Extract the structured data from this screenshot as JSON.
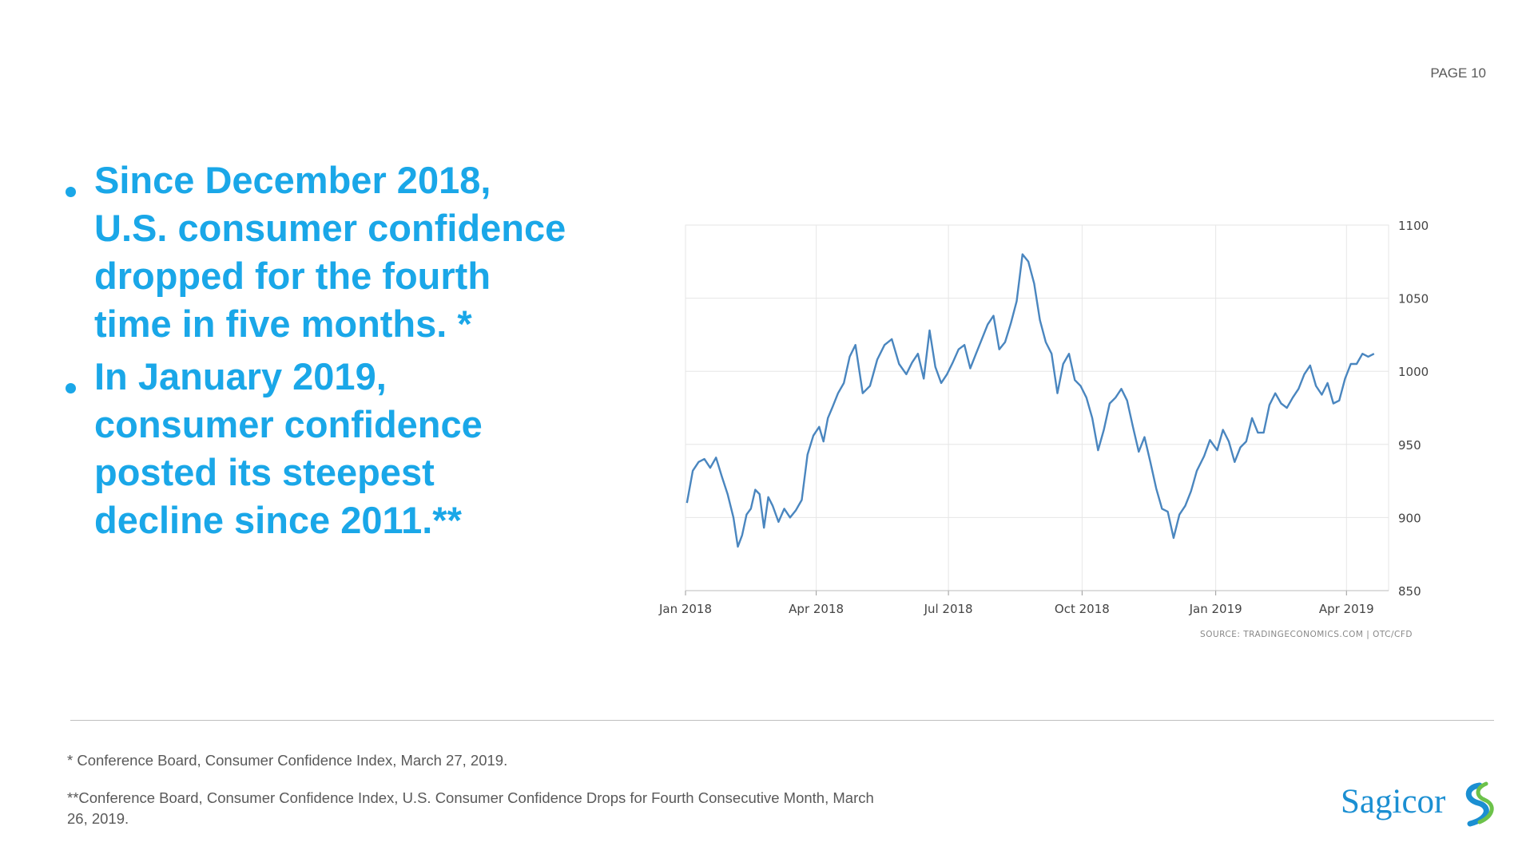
{
  "page": {
    "label": "PAGE 10"
  },
  "bullets": [
    {
      "text": "Since December 2018, U.S. consumer confidence dropped for the fourth time in five months. *"
    },
    {
      "text": "In January 2019, consumer confidence posted its steepest decline since 2011.**"
    }
  ],
  "footnotes": [
    {
      "text": "* Conference Board, Consumer Confidence Index, March 27, 2019."
    },
    {
      "text": "**Conference Board, Consumer Confidence Index, U.S. Consumer Confidence Drops for Fourth Consecutive Month, March 26, 2019."
    }
  ],
  "logo": {
    "text": "Sagicor"
  },
  "colors": {
    "accent": "#1aa7e8",
    "line": "#4a86bf",
    "grid": "#e6e6e6",
    "logo": "#1b8fd2",
    "logo_swoosh": "#6cc24a"
  },
  "chart_data": {
    "type": "line",
    "title": "",
    "source": "SOURCE: TRADINGECONOMICS.COM | OTC/CFD",
    "x_ticks": [
      "Jan 2018",
      "Apr 2018",
      "Jul 2018",
      "Oct 2018",
      "Jan 2019",
      "Apr 2019"
    ],
    "y_ticks": [
      850,
      900,
      950,
      1000,
      1050,
      1100
    ],
    "ylim": [
      850,
      1100
    ],
    "xlim": [
      "2018-01-01",
      "2019-04-30"
    ],
    "grid": true,
    "y_axis_side": "right",
    "series": [
      {
        "x": [
          "2018-01-02",
          "2018-01-06",
          "2018-01-10",
          "2018-01-14",
          "2018-01-18",
          "2018-01-22",
          "2018-01-26",
          "2018-01-30",
          "2018-02-03",
          "2018-02-06",
          "2018-02-09",
          "2018-02-12",
          "2018-02-15",
          "2018-02-18",
          "2018-02-21",
          "2018-02-24",
          "2018-02-27",
          "2018-03-02",
          "2018-03-06",
          "2018-03-10",
          "2018-03-14",
          "2018-03-18",
          "2018-03-22",
          "2018-03-26",
          "2018-03-30",
          "2018-04-03",
          "2018-04-06",
          "2018-04-09",
          "2018-04-12",
          "2018-04-16",
          "2018-04-20",
          "2018-04-24",
          "2018-04-28",
          "2018-05-03",
          "2018-05-08",
          "2018-05-13",
          "2018-05-18",
          "2018-05-23",
          "2018-05-28",
          "2018-06-02",
          "2018-06-06",
          "2018-06-10",
          "2018-06-14",
          "2018-06-18",
          "2018-06-22",
          "2018-06-26",
          "2018-06-30",
          "2018-07-04",
          "2018-07-08",
          "2018-07-12",
          "2018-07-16",
          "2018-07-20",
          "2018-07-24",
          "2018-07-28",
          "2018-08-01",
          "2018-08-05",
          "2018-08-09",
          "2018-08-13",
          "2018-08-17",
          "2018-08-21",
          "2018-08-25",
          "2018-08-29",
          "2018-09-02",
          "2018-09-06",
          "2018-09-10",
          "2018-09-14",
          "2018-09-18",
          "2018-09-22",
          "2018-09-26",
          "2018-09-30",
          "2018-10-04",
          "2018-10-08",
          "2018-10-12",
          "2018-10-16",
          "2018-10-20",
          "2018-10-24",
          "2018-10-28",
          "2018-11-01",
          "2018-11-05",
          "2018-11-09",
          "2018-11-13",
          "2018-11-17",
          "2018-11-21",
          "2018-11-25",
          "2018-11-29",
          "2018-12-03",
          "2018-12-07",
          "2018-12-11",
          "2018-12-15",
          "2018-12-19",
          "2018-12-24",
          "2018-12-28",
          "2019-01-02",
          "2019-01-06",
          "2019-01-10",
          "2019-01-14",
          "2019-01-18",
          "2019-01-22",
          "2019-01-26",
          "2019-01-30",
          "2019-02-03",
          "2019-02-07",
          "2019-02-11",
          "2019-02-15",
          "2019-02-19",
          "2019-02-23",
          "2019-02-27",
          "2019-03-03",
          "2019-03-07",
          "2019-03-11",
          "2019-03-15",
          "2019-03-19",
          "2019-03-23",
          "2019-03-27",
          "2019-03-31",
          "2019-04-04",
          "2019-04-08",
          "2019-04-12",
          "2019-04-16",
          "2019-04-20"
        ],
        "values": [
          910,
          932,
          938,
          940,
          934,
          941,
          928,
          916,
          900,
          880,
          888,
          902,
          906,
          919,
          916,
          893,
          914,
          908,
          897,
          906,
          900,
          905,
          912,
          943,
          956,
          962,
          952,
          968,
          975,
          985,
          992,
          1010,
          1018,
          985,
          990,
          1008,
          1018,
          1022,
          1005,
          998,
          1006,
          1012,
          995,
          1028,
          1003,
          992,
          998,
          1006,
          1015,
          1018,
          1002,
          1012,
          1022,
          1032,
          1038,
          1015,
          1020,
          1033,
          1048,
          1080,
          1075,
          1060,
          1035,
          1020,
          1012,
          985,
          1005,
          1012,
          994,
          990,
          982,
          968,
          946,
          960,
          978,
          982,
          988,
          980,
          962,
          945,
          955,
          938,
          920,
          906,
          904,
          886,
          902,
          908,
          918,
          932,
          942,
          953,
          946,
          960,
          952,
          938,
          948,
          952,
          968,
          958,
          958,
          977,
          985,
          978,
          975,
          982,
          988,
          998,
          1004,
          990,
          984,
          992,
          978,
          980,
          995,
          1005,
          1005,
          1012,
          1010,
          1012
        ]
      }
    ]
  }
}
